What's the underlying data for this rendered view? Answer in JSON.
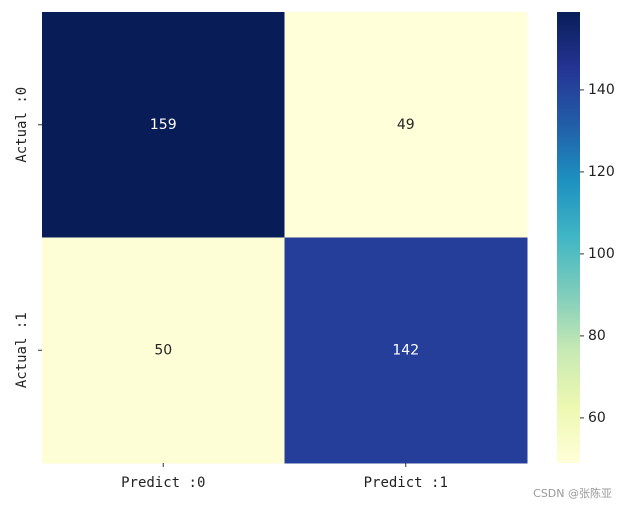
{
  "chart_data": {
    "type": "heatmap",
    "x_categories": [
      "Predict :0",
      "Predict :1"
    ],
    "y_categories": [
      "Actual :0",
      "Actual :1"
    ],
    "values": [
      [
        159,
        49
      ],
      [
        50,
        142
      ]
    ],
    "clim": [
      49,
      159
    ],
    "cticks": [
      60,
      80,
      100,
      120,
      140
    ],
    "colorscale": [
      "#ffffd9",
      "#edf8b1",
      "#c7e9b4",
      "#7fcdbb",
      "#41b6c4",
      "#1d91c0",
      "#225ea8",
      "#253494",
      "#081d58"
    ],
    "watermark": "CSDN @张陈亚"
  }
}
